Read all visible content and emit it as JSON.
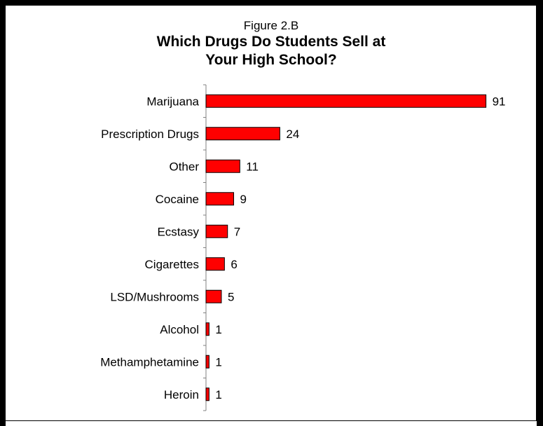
{
  "figure_label": "Figure 2.B",
  "title_lines": [
    "Which Drugs Do Students Sell at",
    "Your High School?"
  ],
  "colors": {
    "bar_fill": "#ff0000",
    "bar_stroke": "#000000",
    "axis": "#808080",
    "text": "#000000"
  },
  "chart_data": {
    "type": "bar",
    "orientation": "horizontal",
    "title": "Which Drugs Do Students Sell at Your High School?",
    "subtitle": "Figure 2.B",
    "categories": [
      "Marijuana",
      "Prescription Drugs",
      "Other",
      "Cocaine",
      "Ecstasy",
      "Cigarettes",
      "LSD/Mushrooms",
      "Alcohol",
      "Methamphetamine",
      "Heroin"
    ],
    "values": [
      91,
      24,
      11,
      9,
      7,
      6,
      5,
      1,
      1,
      1
    ],
    "data_labels": true,
    "xlim": [
      0,
      92
    ],
    "xlabel": "",
    "ylabel": "",
    "grid": false,
    "legend": "none"
  }
}
